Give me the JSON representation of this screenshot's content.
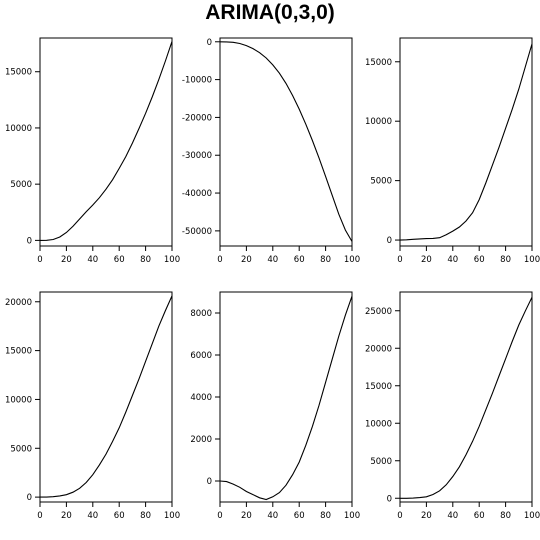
{
  "figure": {
    "title": "ARIMA(0,3,0)"
  },
  "chart_data": [
    {
      "type": "line",
      "x": [
        0,
        5,
        10,
        15,
        20,
        25,
        30,
        35,
        40,
        45,
        50,
        55,
        60,
        65,
        70,
        75,
        80,
        85,
        90,
        95,
        100
      ],
      "values": [
        0,
        10,
        80,
        300,
        700,
        1250,
        1900,
        2550,
        3150,
        3800,
        4550,
        5400,
        6400,
        7450,
        8650,
        9950,
        11300,
        12750,
        14300,
        15950,
        17700
      ],
      "xlim": [
        0,
        100
      ],
      "ylim": [
        -500,
        18000
      ],
      "xticks": [
        0,
        20,
        40,
        60,
        80,
        100
      ],
      "yticks": [
        0,
        5000,
        10000,
        15000
      ],
      "grid": false
    },
    {
      "type": "line",
      "x": [
        0,
        5,
        10,
        15,
        20,
        25,
        30,
        35,
        40,
        45,
        50,
        55,
        60,
        65,
        70,
        75,
        80,
        85,
        90,
        95,
        100
      ],
      "values": [
        0,
        -20,
        -150,
        -450,
        -1000,
        -1800,
        -2900,
        -4300,
        -6100,
        -8300,
        -11000,
        -14200,
        -17800,
        -21800,
        -26100,
        -30700,
        -35600,
        -40600,
        -45600,
        -49800,
        -52800
      ],
      "xlim": [
        0,
        100
      ],
      "ylim": [
        -54000,
        1000
      ],
      "xticks": [
        0,
        20,
        40,
        60,
        80,
        100
      ],
      "yticks": [
        0,
        -10000,
        -20000,
        -30000,
        -40000,
        -50000
      ],
      "grid": false
    },
    {
      "type": "line",
      "x": [
        0,
        5,
        10,
        15,
        20,
        25,
        30,
        35,
        40,
        45,
        50,
        55,
        60,
        65,
        70,
        75,
        80,
        85,
        90,
        95,
        100
      ],
      "values": [
        0,
        20,
        60,
        100,
        120,
        140,
        200,
        450,
        750,
        1100,
        1600,
        2300,
        3400,
        4800,
        6300,
        7800,
        9400,
        11000,
        12700,
        14600,
        16500
      ],
      "xlim": [
        0,
        100
      ],
      "ylim": [
        -500,
        17000
      ],
      "xticks": [
        0,
        20,
        40,
        60,
        80,
        100
      ],
      "yticks": [
        0,
        5000,
        10000,
        15000
      ],
      "grid": false
    },
    {
      "type": "line",
      "x": [
        0,
        5,
        10,
        15,
        20,
        25,
        30,
        35,
        40,
        45,
        50,
        55,
        60,
        65,
        70,
        75,
        80,
        85,
        90,
        95,
        100
      ],
      "values": [
        0,
        5,
        40,
        120,
        250,
        500,
        900,
        1500,
        2300,
        3300,
        4400,
        5700,
        7100,
        8700,
        10400,
        12100,
        13900,
        15700,
        17500,
        19100,
        20600
      ],
      "xlim": [
        0,
        100
      ],
      "ylim": [
        -500,
        21000
      ],
      "xticks": [
        0,
        20,
        40,
        60,
        80,
        100
      ],
      "yticks": [
        0,
        5000,
        10000,
        15000,
        20000
      ],
      "grid": false
    },
    {
      "type": "line",
      "x": [
        0,
        5,
        10,
        15,
        20,
        25,
        30,
        35,
        40,
        45,
        50,
        55,
        60,
        65,
        70,
        75,
        80,
        85,
        90,
        95,
        100
      ],
      "values": [
        0,
        -30,
        -150,
        -300,
        -500,
        -650,
        -800,
        -880,
        -750,
        -550,
        -200,
        300,
        900,
        1700,
        2600,
        3600,
        4700,
        5800,
        6900,
        7900,
        8800
      ],
      "xlim": [
        0,
        100
      ],
      "ylim": [
        -1000,
        9000
      ],
      "xticks": [
        0,
        20,
        40,
        60,
        80,
        100
      ],
      "yticks": [
        0,
        2000,
        4000,
        6000,
        8000
      ],
      "grid": false
    },
    {
      "type": "line",
      "x": [
        0,
        5,
        10,
        15,
        20,
        25,
        30,
        35,
        40,
        45,
        50,
        55,
        60,
        65,
        70,
        75,
        80,
        85,
        90,
        95,
        100
      ],
      "values": [
        0,
        0,
        20,
        80,
        200,
        500,
        1000,
        1800,
        2900,
        4200,
        5800,
        7600,
        9600,
        11800,
        14000,
        16300,
        18600,
        20900,
        23100,
        25000,
        26800
      ],
      "xlim": [
        0,
        100
      ],
      "ylim": [
        -500,
        27500
      ],
      "xticks": [
        0,
        20,
        40,
        60,
        80,
        100
      ],
      "yticks": [
        0,
        5000,
        10000,
        15000,
        20000,
        25000
      ],
      "grid": false
    }
  ]
}
